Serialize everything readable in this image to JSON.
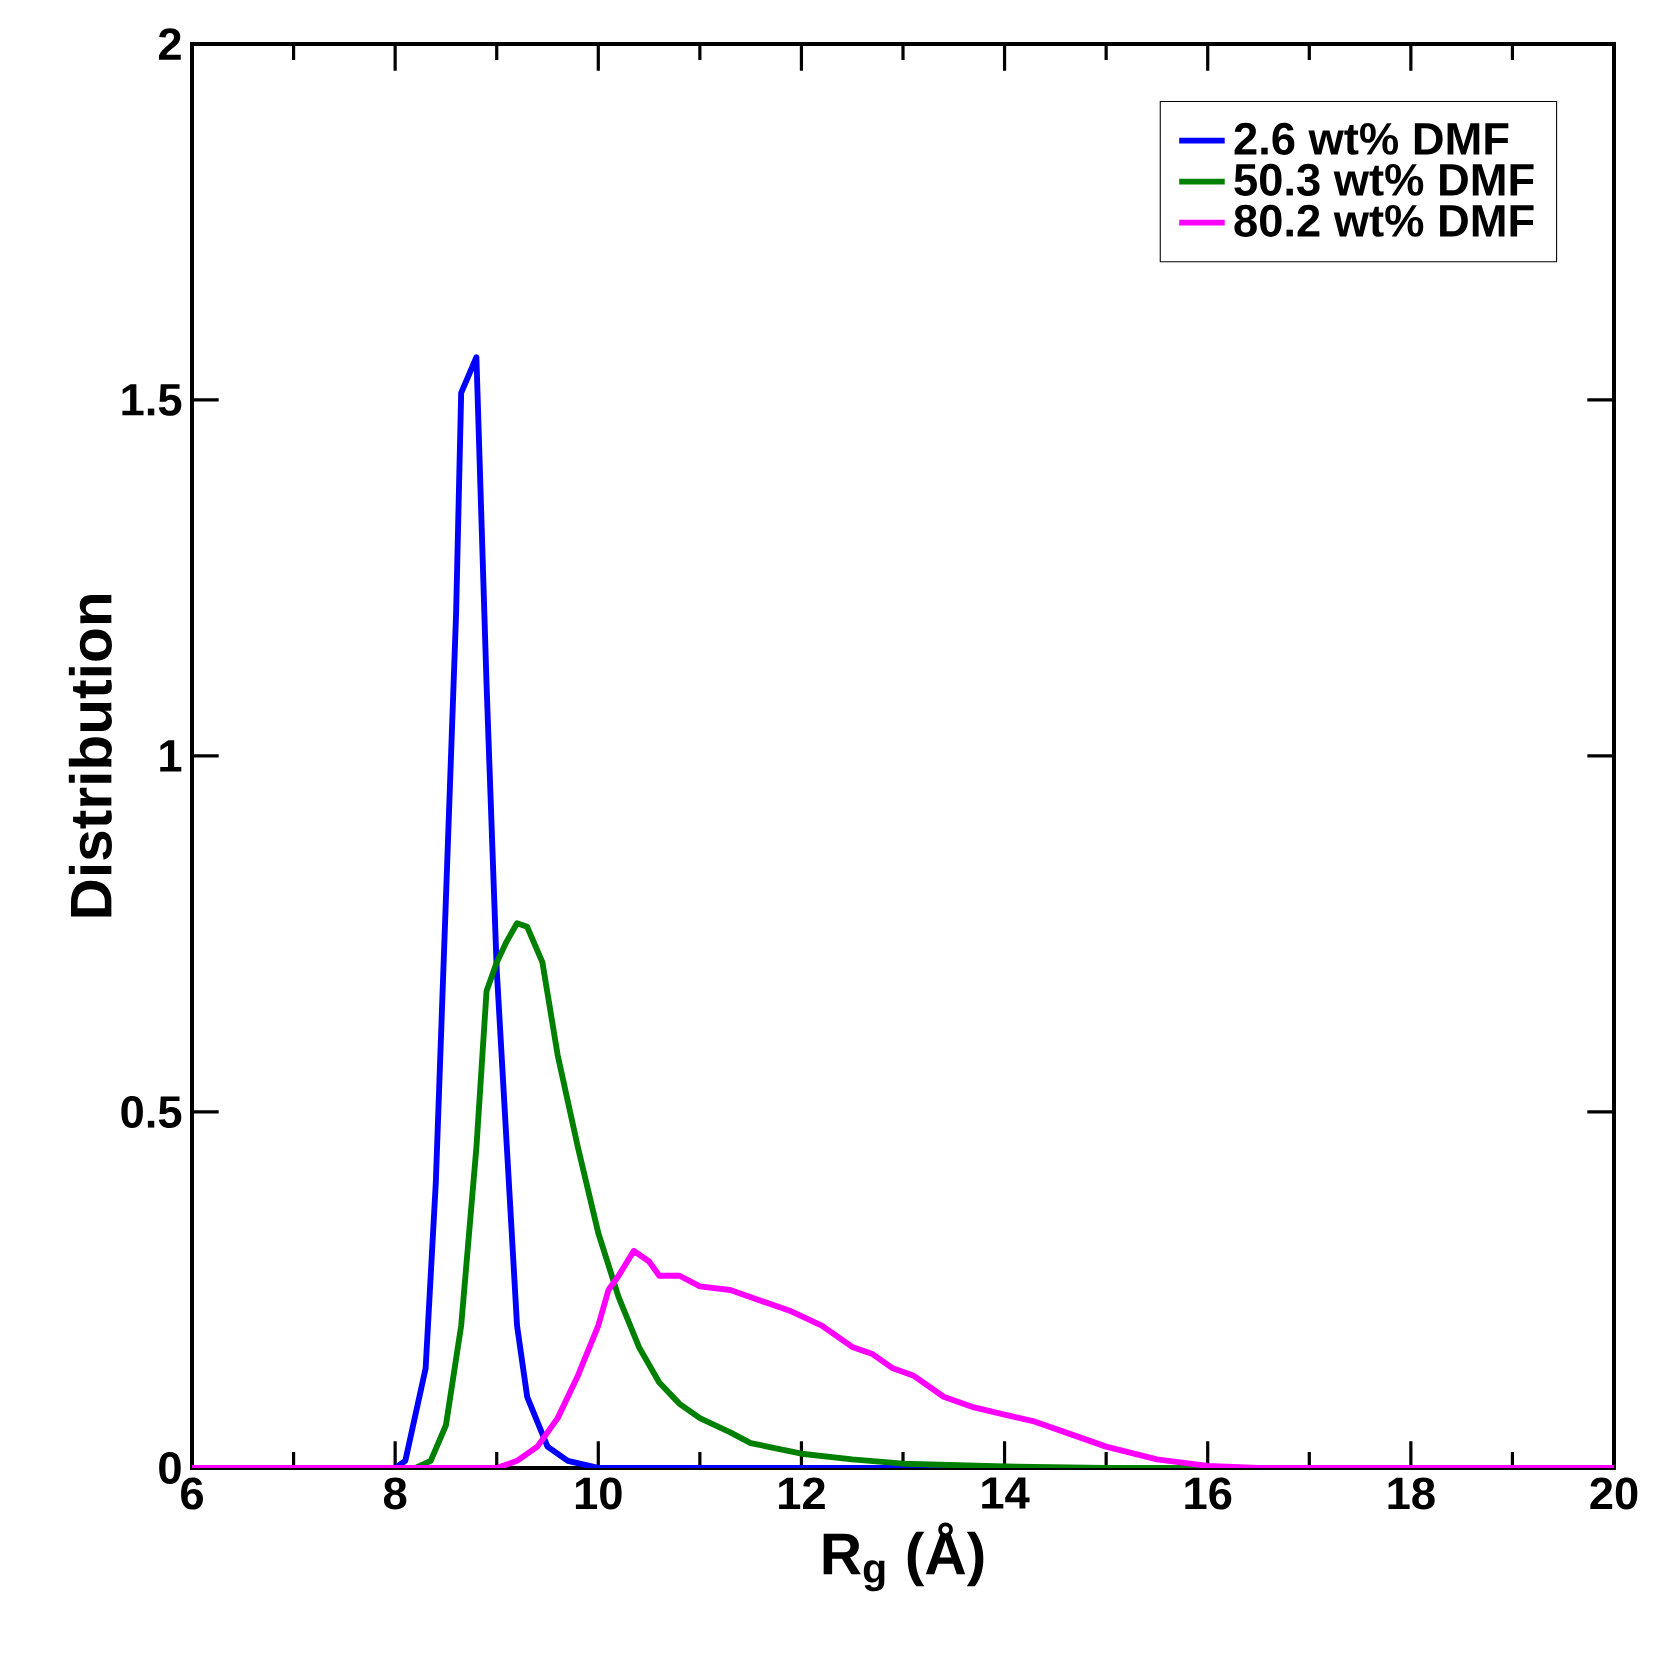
{
  "chart_data": {
    "type": "line",
    "xlabel": "R$_{g}$ (Å)",
    "ylabel": "Distribution",
    "xlim": [
      6,
      20
    ],
    "ylim": [
      0,
      2
    ],
    "xticks": [
      6,
      8,
      10,
      12,
      14,
      16,
      18,
      20
    ],
    "yticks": [
      0,
      0.5,
      1,
      1.5,
      2
    ],
    "grid": false,
    "legend": "top right",
    "marker": "none",
    "line_style": "solid",
    "series": [
      {
        "name": "2.6 wt% DMF",
        "color": "#0000ff",
        "x": [
          6,
          8.0,
          8.1,
          8.3,
          8.4,
          8.5,
          8.6,
          8.65,
          8.8,
          8.9,
          9.0,
          9.1,
          9.2,
          9.3,
          9.5,
          9.7,
          10,
          20
        ],
        "values": [
          0,
          0,
          0.01,
          0.14,
          0.4,
          0.8,
          1.2,
          1.51,
          1.56,
          1.1,
          0.7,
          0.45,
          0.2,
          0.1,
          0.03,
          0.01,
          0,
          0
        ]
      },
      {
        "name": "50.3 wt% DMF",
        "color": "#008000",
        "x": [
          6,
          8.2,
          8.35,
          8.5,
          8.65,
          8.8,
          8.9,
          9.0,
          9.1,
          9.2,
          9.3,
          9.45,
          9.6,
          9.8,
          10,
          10.2,
          10.4,
          10.6,
          10.8,
          11,
          11.3,
          11.5,
          12,
          12.5,
          13,
          14,
          15,
          20
        ],
        "values": [
          0,
          0,
          0.01,
          0.06,
          0.2,
          0.45,
          0.67,
          0.71,
          0.74,
          0.765,
          0.76,
          0.71,
          0.58,
          0.45,
          0.33,
          0.24,
          0.17,
          0.12,
          0.09,
          0.07,
          0.05,
          0.035,
          0.02,
          0.012,
          0.006,
          0.002,
          0,
          0
        ]
      },
      {
        "name": "80.2 wt% DMF",
        "color": "#ff00ff",
        "x": [
          6,
          9,
          9.2,
          9.4,
          9.6,
          9.8,
          10,
          10.1,
          10.2,
          10.35,
          10.5,
          10.6,
          10.8,
          11,
          11.3,
          11.6,
          11.9,
          12.2,
          12.5,
          12.7,
          12.9,
          13.1,
          13.4,
          13.7,
          14.0,
          14.3,
          14.6,
          15,
          15.5,
          16,
          16.5,
          20
        ],
        "values": [
          0,
          0,
          0.01,
          0.03,
          0.07,
          0.13,
          0.2,
          0.25,
          0.27,
          0.305,
          0.29,
          0.27,
          0.27,
          0.255,
          0.25,
          0.235,
          0.22,
          0.2,
          0.17,
          0.16,
          0.14,
          0.13,
          0.1,
          0.085,
          0.075,
          0.065,
          0.05,
          0.03,
          0.012,
          0.003,
          0,
          0
        ]
      }
    ]
  }
}
